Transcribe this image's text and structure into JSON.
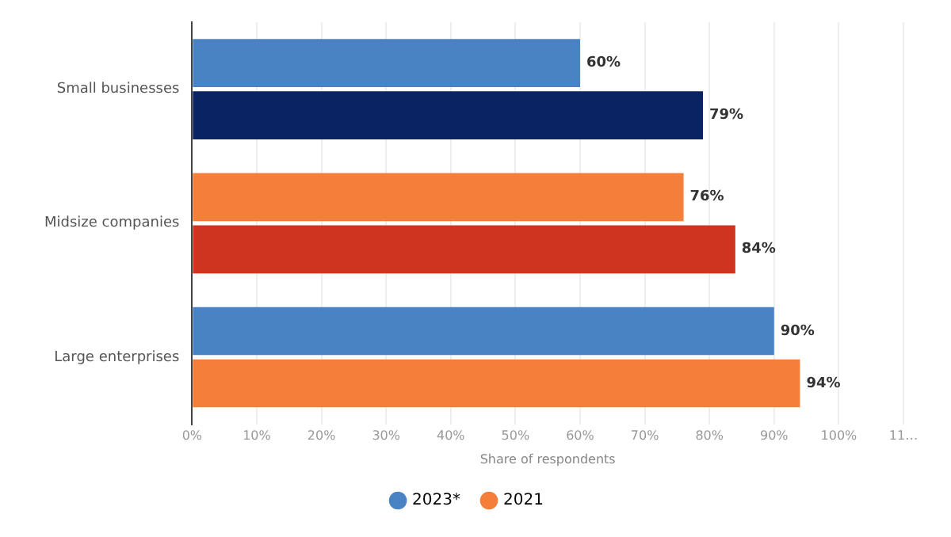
{
  "chart_data": {
    "type": "bar",
    "orientation": "horizontal",
    "xlabel": "Share of respondents",
    "categories": [
      "Small businesses",
      "Midsize companies",
      "Large enterprises"
    ],
    "series": [
      {
        "name": "2023*",
        "color": "#4a83c4",
        "colors": [
          "#4a83c4",
          "#f47e3a",
          "#4a83c4"
        ],
        "values": [
          60,
          76,
          90
        ],
        "value_labels": [
          "60%",
          "76%",
          "90%"
        ]
      },
      {
        "name": "2021",
        "color": "#f47e3a",
        "colors": [
          "#0a2463",
          "#cf3420",
          "#f47e3a"
        ],
        "values": [
          79,
          84,
          94
        ],
        "value_labels": [
          "79%",
          "84%",
          "94%"
        ]
      }
    ],
    "xlim": [
      0,
      110
    ],
    "xticks": [
      {
        "value": 0,
        "label": "0%"
      },
      {
        "value": 10,
        "label": "10%"
      },
      {
        "value": 20,
        "label": "20%"
      },
      {
        "value": 30,
        "label": "30%"
      },
      {
        "value": 40,
        "label": "40%"
      },
      {
        "value": 50,
        "label": "50%"
      },
      {
        "value": 60,
        "label": "60%"
      },
      {
        "value": 70,
        "label": "70%"
      },
      {
        "value": 80,
        "label": "80%"
      },
      {
        "value": 90,
        "label": "90%"
      },
      {
        "value": 100,
        "label": "100%"
      },
      {
        "value": 110,
        "label": "11…"
      }
    ],
    "grid": "x",
    "legend": "bottom"
  }
}
